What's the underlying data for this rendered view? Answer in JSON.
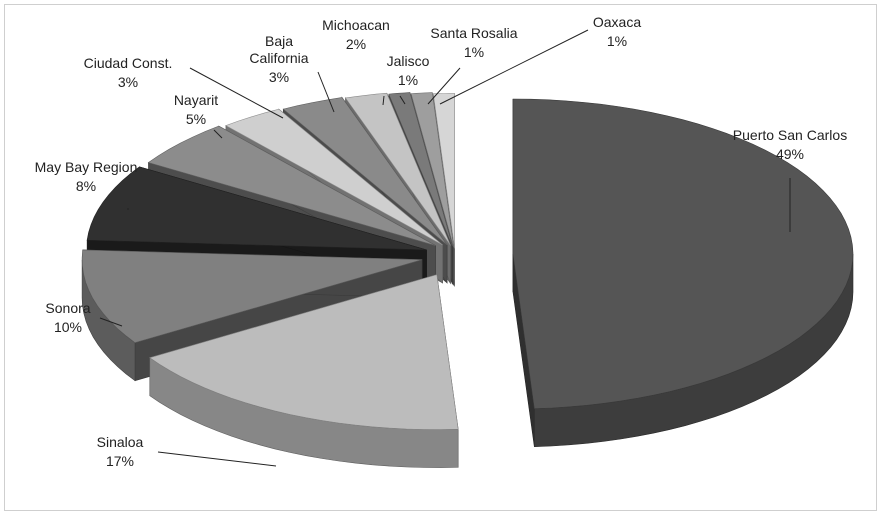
{
  "chart_data": {
    "type": "pie",
    "style": "3d-exploded",
    "title": "",
    "legend": "none",
    "slices": [
      {
        "label": "Puerto San Carlos",
        "value": 49,
        "pct": "49%",
        "color": "#555555"
      },
      {
        "label": "Sinaloa",
        "value": 17,
        "pct": "17%",
        "color": "#bcbcbc"
      },
      {
        "label": "Sonora",
        "value": 10,
        "pct": "10%",
        "color": "#808080"
      },
      {
        "label": "May Bay Region",
        "value": 8,
        "pct": "8%",
        "color": "#303030"
      },
      {
        "label": "Nayarit",
        "value": 5,
        "pct": "5%",
        "color": "#8c8c8c"
      },
      {
        "label": "Ciudad Const.",
        "value": 3,
        "pct": "3%",
        "color": "#cfcfcf"
      },
      {
        "label": "Baja California",
        "value": 3,
        "pct": "3%",
        "color": "#8a8a8a"
      },
      {
        "label": "Michoacan",
        "value": 2,
        "pct": "2%",
        "color": "#c4c4c4"
      },
      {
        "label": "Jalisco",
        "value": 1,
        "pct": "1%",
        "color": "#7a7a7a"
      },
      {
        "label": "Santa Rosalia",
        "value": 1,
        "pct": "1%",
        "color": "#9e9e9e"
      },
      {
        "label": "Oaxaca",
        "value": 1,
        "pct": "1%",
        "color": "#d6d6d6"
      }
    ]
  }
}
